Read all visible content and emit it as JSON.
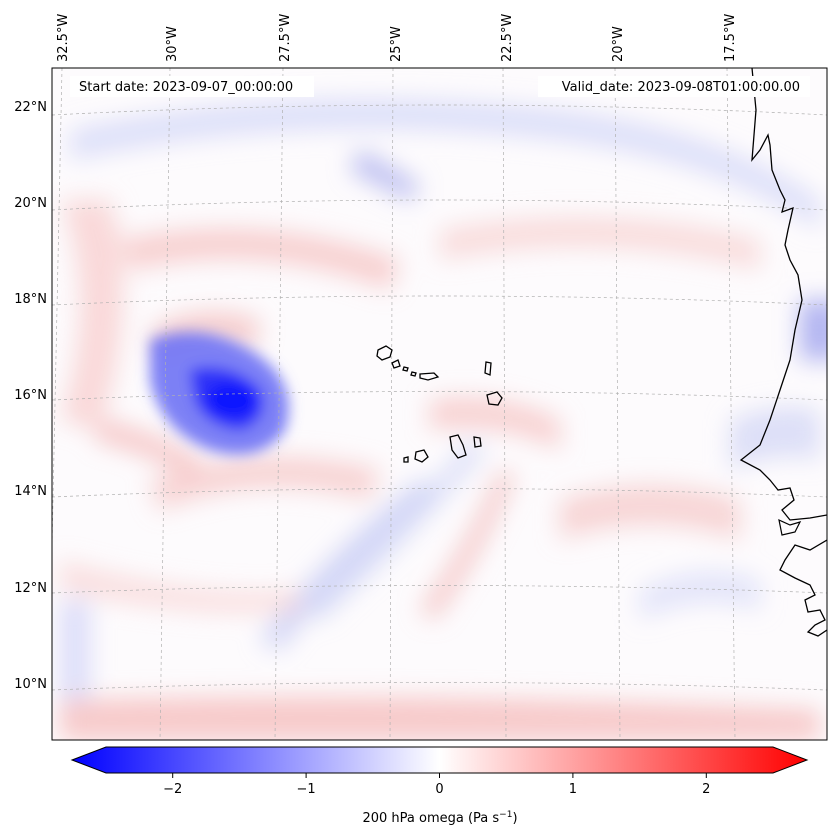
{
  "map": {
    "start_date_label": "Start date: 2023-09-07_00:00:00",
    "valid_date_label": "Valid_date: 2023-09-08T01:00:00.00",
    "longitude_labels": [
      "32.5°W",
      "30°W",
      "27.5°W",
      "25°W",
      "22.5°W",
      "20°W",
      "17.5°W"
    ],
    "latitude_labels": [
      "22°N",
      "20°N",
      "18°N",
      "16°N",
      "14°N",
      "12°N",
      "10°N"
    ],
    "colors": {
      "negative": "#0000ff",
      "neutral": "#ffffff",
      "positive": "#ff0000",
      "coastline": "#000000",
      "gridline": "#b0b0b0"
    }
  },
  "colorbar": {
    "label_main": "200 hPa omega (Pa s",
    "label_exp": "−1",
    "label_close": ")",
    "tick_labels": [
      "−2",
      "−1",
      "0",
      "1",
      "2"
    ],
    "tick_values": [
      -2,
      -1,
      0,
      1,
      2
    ],
    "range": [
      -2.5,
      2.5
    ]
  }
}
